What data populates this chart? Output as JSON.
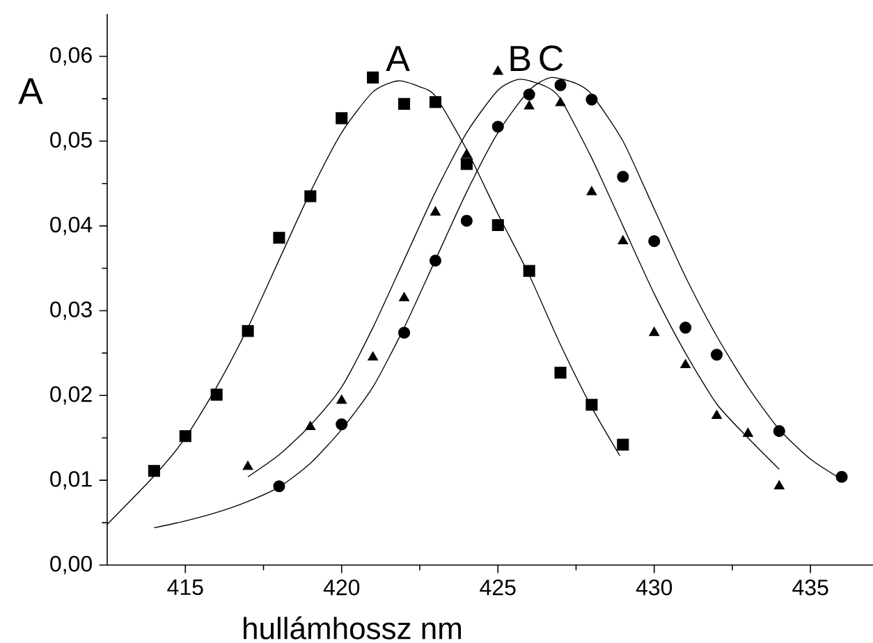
{
  "chart_data": {
    "type": "scatter",
    "xlabel": "hullámhossz   nm",
    "ylabel": "A",
    "xlim": [
      412.5,
      437
    ],
    "ylim": [
      0,
      0.065
    ],
    "xticks": [
      415,
      420,
      425,
      430,
      435
    ],
    "yticks": [
      {
        "value": 0,
        "label": "0,00"
      },
      {
        "value": 0.01,
        "label": "0,01"
      },
      {
        "value": 0.02,
        "label": "0,02"
      },
      {
        "value": 0.03,
        "label": "0,03"
      },
      {
        "value": 0.04,
        "label": "0,04"
      },
      {
        "value": 0.05,
        "label": "0,05"
      },
      {
        "value": 0.06,
        "label": "0,06"
      }
    ],
    "annotations": [
      "A",
      "B",
      "C"
    ],
    "series": [
      {
        "type": "scatter",
        "marker": "square",
        "color": "#000000",
        "x": [
          414,
          415,
          416,
          417,
          418,
          419,
          420,
          421,
          422,
          423,
          424,
          425,
          426,
          427,
          428,
          429
        ],
        "values": [
          0.0111,
          0.0152,
          0.0201,
          0.0276,
          0.0386,
          0.0435,
          0.0527,
          0.0575,
          0.0544,
          0.0546,
          0.0473,
          0.0401,
          0.0347,
          0.0227,
          0.0189,
          0.0142
        ]
      },
      {
        "type": "scatter",
        "marker": "triangle",
        "color": "#000000",
        "x": [
          417,
          419,
          420,
          421,
          422,
          423,
          424,
          425,
          426,
          427,
          428,
          429,
          430,
          431,
          432,
          433,
          434
        ],
        "values": [
          0.0116,
          0.0163,
          0.0194,
          0.0245,
          0.0315,
          0.0416,
          0.0484,
          0.0582,
          0.0541,
          0.0545,
          0.044,
          0.0382,
          0.0274,
          0.0236,
          0.0176,
          0.0155,
          0.0093
        ]
      },
      {
        "type": "scatter",
        "marker": "circle",
        "color": "#000000",
        "x": [
          418,
          420,
          422,
          423,
          424,
          425,
          426,
          427,
          428,
          429,
          430,
          431,
          432,
          434,
          436
        ],
        "values": [
          0.0093,
          0.0166,
          0.0274,
          0.0359,
          0.0406,
          0.0517,
          0.0555,
          0.0566,
          0.0549,
          0.0458,
          0.0382,
          0.028,
          0.0248,
          0.0158,
          0.0104
        ]
      },
      {
        "type": "line",
        "marker": "none",
        "color": "#000000",
        "x": [
          412.5,
          414,
          415,
          416,
          417,
          418,
          419,
          420,
          421,
          421.8,
          422.5,
          423,
          424,
          425,
          426,
          427,
          428,
          428.9
        ],
        "values": [
          0.0048,
          0.0105,
          0.015,
          0.021,
          0.028,
          0.036,
          0.044,
          0.051,
          0.0558,
          0.0571,
          0.0564,
          0.0553,
          0.049,
          0.0414,
          0.0342,
          0.026,
          0.0186,
          0.0129
        ]
      },
      {
        "type": "line",
        "marker": "none",
        "color": "#000000",
        "x": [
          417,
          418,
          419,
          420,
          421,
          422,
          423,
          424,
          425,
          425.7,
          426.5,
          427,
          428,
          429,
          430,
          431,
          432,
          433,
          434
        ],
        "values": [
          0.0104,
          0.013,
          0.0165,
          0.021,
          0.028,
          0.036,
          0.044,
          0.051,
          0.056,
          0.0573,
          0.0565,
          0.055,
          0.048,
          0.04,
          0.032,
          0.025,
          0.019,
          0.015,
          0.0113
        ]
      },
      {
        "type": "line",
        "marker": "none",
        "color": "#000000",
        "x": [
          414,
          415,
          416,
          417,
          418,
          419,
          420,
          421,
          422,
          423,
          424,
          425,
          426,
          426.7,
          427.5,
          428,
          429,
          430,
          431,
          432,
          433,
          434,
          435,
          436
        ],
        "values": [
          0.0044,
          0.0052,
          0.0062,
          0.0075,
          0.0092,
          0.012,
          0.016,
          0.021,
          0.028,
          0.036,
          0.044,
          0.051,
          0.056,
          0.0575,
          0.0568,
          0.0555,
          0.05,
          0.042,
          0.034,
          0.027,
          0.021,
          0.016,
          0.0125,
          0.0101
        ]
      }
    ]
  }
}
